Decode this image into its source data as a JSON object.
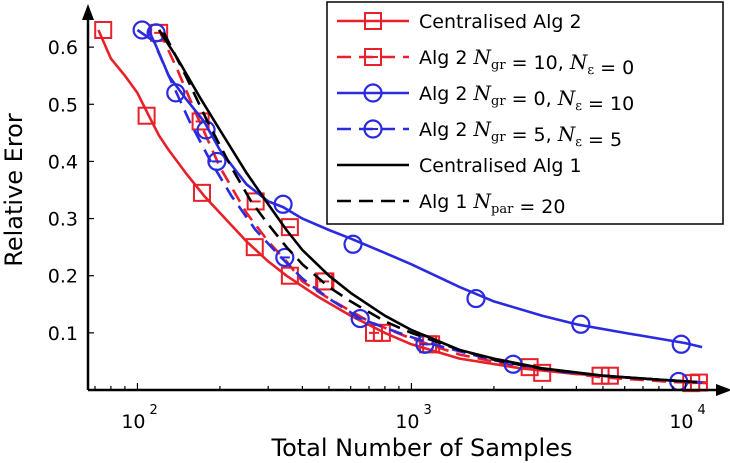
{
  "chart_data": {
    "type": "line",
    "xscale": "log",
    "xlim": [
      66,
      12500
    ],
    "ylim": [
      0,
      0.665
    ],
    "xlabel": "Total Number of Samples",
    "ylabel": "Relative Eror",
    "xticks": [
      {
        "value": 100,
        "label": "10",
        "exp": "2"
      },
      {
        "value": 1000,
        "label": "10",
        "exp": "3"
      },
      {
        "value": 10000,
        "label": "10",
        "exp": "4"
      }
    ],
    "yticks": [
      {
        "value": 0.1,
        "label": "0.1"
      },
      {
        "value": 0.2,
        "label": "0.2"
      },
      {
        "value": 0.3,
        "label": "0.3"
      },
      {
        "value": 0.4,
        "label": "0.4"
      },
      {
        "value": 0.5,
        "label": "0.5"
      },
      {
        "value": 0.6,
        "label": "0.6"
      }
    ],
    "legend_position": "top-right",
    "series": [
      {
        "name": "Centralised Alg 2",
        "legend_parts": [
          {
            "t": "Centralised Alg 2"
          }
        ],
        "color": "#e8202a",
        "dash": "solid",
        "marker": "square",
        "x": [
          72,
          80,
          90,
          100,
          110,
          120,
          130,
          150,
          175,
          200,
          250,
          300,
          350,
          450,
          600,
          800,
          1000,
          1500,
          2500,
          4000,
          6000,
          8000,
          10000,
          12000
        ],
        "y": [
          0.63,
          0.58,
          0.55,
          0.52,
          0.48,
          0.445,
          0.42,
          0.38,
          0.34,
          0.31,
          0.26,
          0.225,
          0.2,
          0.165,
          0.13,
          0.1,
          0.08,
          0.055,
          0.038,
          0.028,
          0.022,
          0.018,
          0.015,
          0.013
        ],
        "marker_x": [
          75,
          108,
          172,
          268,
          360,
          485,
          780,
          1150,
          3000,
          5300,
          11200
        ],
        "marker_y": [
          0.63,
          0.48,
          0.345,
          0.25,
          0.2,
          0.19,
          0.1,
          0.08,
          0.03,
          0.025,
          0.013
        ]
      },
      {
        "name": "Alg 2 N_gr = 10, N_ε = 0",
        "legend_parts": [
          {
            "t": "Alg 2 "
          },
          {
            "m": "N",
            "s": "gr"
          },
          {
            "t": " = 10, "
          },
          {
            "m": "N",
            "s": "ε"
          },
          {
            "t": " = 0"
          }
        ],
        "color": "#e8202a",
        "dash": "dashed",
        "marker": "square",
        "x": [
          120,
          140,
          165,
          200,
          250,
          300,
          350,
          400,
          500,
          700,
          1000,
          1500,
          2500,
          5000,
          9000,
          12000
        ],
        "y": [
          0.63,
          0.56,
          0.48,
          0.39,
          0.31,
          0.26,
          0.225,
          0.19,
          0.16,
          0.12,
          0.09,
          0.062,
          0.04,
          0.022,
          0.014,
          0.012
        ],
        "marker_x": [
          120,
          170,
          270,
          360,
          480,
          730,
          1180,
          2700,
          4900,
          10500
        ],
        "marker_y": [
          0.625,
          0.47,
          0.33,
          0.285,
          0.19,
          0.1,
          0.08,
          0.04,
          0.025,
          0.012
        ]
      },
      {
        "name": "Alg 2 N_gr = 0, N_ε = 10",
        "legend_parts": [
          {
            "t": "Alg 2 "
          },
          {
            "m": "N",
            "s": "gr"
          },
          {
            "t": " = 0, "
          },
          {
            "m": "N",
            "s": "ε"
          },
          {
            "t": " = 10"
          }
        ],
        "color": "#2a2ae0",
        "dash": "solid",
        "marker": "circle",
        "x": [
          100,
          115,
          130,
          150,
          175,
          200,
          250,
          300,
          340,
          400,
          500,
          600,
          800,
          1000,
          1500,
          2000,
          3000,
          4000,
          6000,
          8000,
          10000,
          11500
        ],
        "y": [
          0.63,
          0.61,
          0.55,
          0.51,
          0.47,
          0.42,
          0.36,
          0.33,
          0.32,
          0.3,
          0.28,
          0.265,
          0.24,
          0.22,
          0.18,
          0.155,
          0.13,
          0.115,
          0.1,
          0.09,
          0.082,
          0.075
        ],
        "marker_x": [
          104,
          117,
          138,
          178,
          340,
          612,
          1720,
          4150,
          9650
        ],
        "marker_y": [
          0.63,
          0.625,
          0.52,
          0.455,
          0.325,
          0.255,
          0.16,
          0.115,
          0.08
        ]
      },
      {
        "name": "Alg 2 N_gr = 5, N_ε = 5",
        "legend_parts": [
          {
            "t": "Alg 2 "
          },
          {
            "m": "N",
            "s": "gr"
          },
          {
            "t": " = 5, "
          },
          {
            "m": "N",
            "s": "ε"
          },
          {
            "t": " = 5"
          }
        ],
        "color": "#2a2ae0",
        "dash": "dashed",
        "marker": "circle",
        "x": [
          110,
          130,
          155,
          185,
          220,
          270,
          330,
          400,
          500,
          650,
          900,
          1200,
          2000,
          3500,
          6000,
          10000,
          11500
        ],
        "y": [
          0.63,
          0.55,
          0.47,
          0.4,
          0.34,
          0.28,
          0.235,
          0.195,
          0.16,
          0.125,
          0.1,
          0.08,
          0.052,
          0.032,
          0.022,
          0.015,
          0.013
        ],
        "marker_x": [
          195,
          345,
          650,
          1120,
          2350,
          9450
        ],
        "marker_y": [
          0.4,
          0.232,
          0.125,
          0.08,
          0.045,
          0.015
        ]
      },
      {
        "name": "Centralised Alg 1",
        "legend_parts": [
          {
            "t": "Centralised Alg 1"
          }
        ],
        "color": "#000000",
        "dash": "solid",
        "marker": "none",
        "x": [
          120,
          140,
          170,
          200,
          250,
          300,
          350,
          400,
          500,
          600,
          800,
          1000,
          1500,
          2000,
          3000,
          5000,
          8000,
          11000
        ],
        "y": [
          0.63,
          0.58,
          0.51,
          0.455,
          0.38,
          0.325,
          0.28,
          0.245,
          0.2,
          0.17,
          0.13,
          0.105,
          0.07,
          0.055,
          0.038,
          0.025,
          0.018,
          0.014
        ],
        "marker_x": [],
        "marker_y": []
      },
      {
        "name": "Alg 1 N_par = 20",
        "legend_parts": [
          {
            "t": "Alg 1 "
          },
          {
            "m": "N",
            "s": "par"
          },
          {
            "t": " = 20"
          }
        ],
        "color": "#000000",
        "dash": "dashed",
        "marker": "none",
        "x": [
          125,
          150,
          180,
          220,
          260,
          300,
          350,
          400,
          500,
          600,
          800,
          1000,
          1500,
          2000,
          3000,
          5000,
          8000,
          11000
        ],
        "y": [
          0.625,
          0.55,
          0.47,
          0.39,
          0.33,
          0.29,
          0.25,
          0.22,
          0.18,
          0.155,
          0.12,
          0.1,
          0.07,
          0.053,
          0.037,
          0.025,
          0.018,
          0.014
        ],
        "marker_x": [],
        "marker_y": []
      }
    ]
  }
}
